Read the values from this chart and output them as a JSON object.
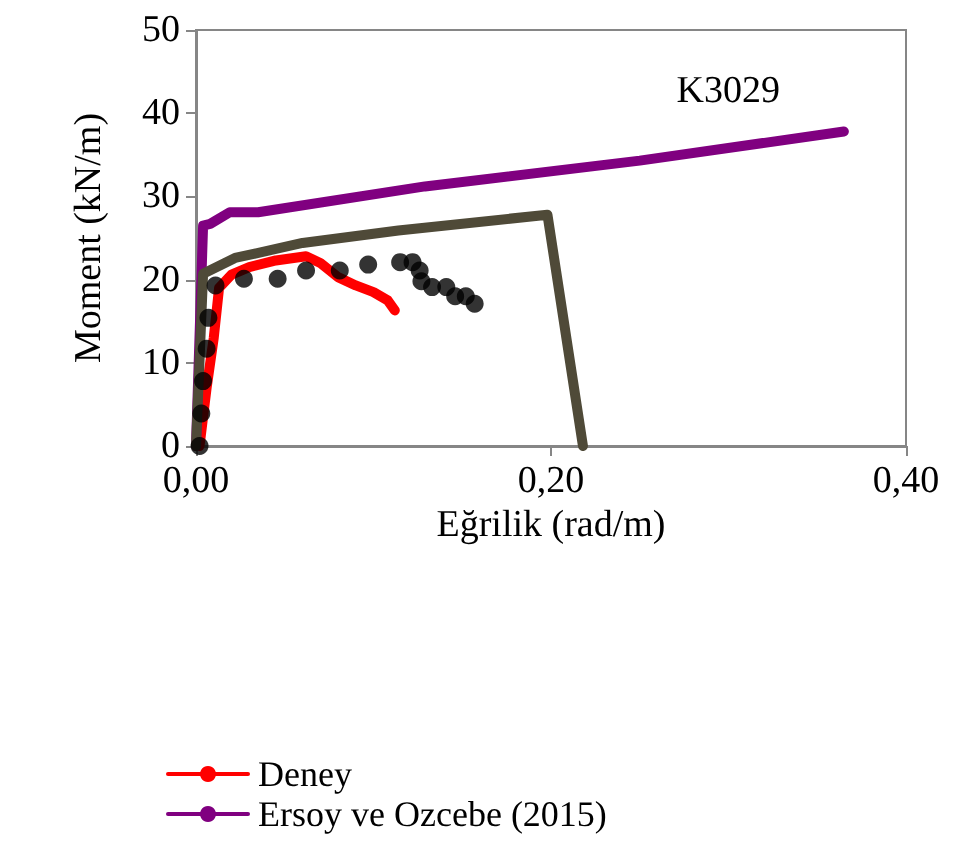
{
  "chart_data": {
    "type": "line",
    "xlabel": "Eğrilik (rad/m)",
    "ylabel": "Moment (kN/m)",
    "xlim": [
      0,
      0.4
    ],
    "xticks": [
      {
        "value": 0,
        "label": "0,00"
      },
      {
        "value": 0.2,
        "label": "0,20"
      },
      {
        "value": 0.4,
        "label": "0,40"
      }
    ],
    "ylim": [
      0,
      50
    ],
    "yticks": [
      0,
      10,
      20,
      30,
      40,
      50
    ],
    "grid": false,
    "legend": "bottom",
    "annotations": [
      "K3029"
    ],
    "series": [
      {
        "name": "Deney",
        "color": "#ff0000",
        "marker": "none",
        "x": [
          0.002,
          0.006,
          0.01,
          0.013,
          0.02,
          0.03,
          0.045,
          0.062,
          0.07,
          0.08,
          0.09,
          0.1,
          0.108,
          0.112
        ],
        "values": [
          0,
          7,
          13,
          19,
          20.6,
          21.5,
          22.3,
          22.8,
          22,
          20.3,
          19.3,
          18.5,
          17.5,
          16.3
        ]
      },
      {
        "name": "Ersoy ve Ozcebe (2015)",
        "color": "#800080",
        "marker": "none",
        "x": [
          0,
          0.004,
          0.008,
          0.019,
          0.035,
          0.129,
          0.25,
          0.365
        ],
        "values": [
          0,
          26.5,
          26.7,
          28.1,
          28.1,
          31.2,
          34.3,
          37.8
        ]
      },
      {
        "color": "#4f4a38",
        "marker": "none",
        "x": [
          0,
          0.004,
          0.022,
          0.06,
          0.114,
          0.198,
          0.218
        ],
        "values": [
          0,
          20.7,
          22.6,
          24.4,
          25.9,
          27.8,
          0
        ]
      },
      {
        "type": "scatter",
        "color": "#000000",
        "marker": "circle",
        "x": [
          0.002,
          0.003,
          0.004,
          0.006,
          0.007,
          0.011,
          0.027,
          0.046,
          0.062,
          0.081,
          0.097,
          0.115,
          0.122,
          0.126,
          0.127,
          0.133,
          0.141,
          0.146,
          0.152,
          0.157
        ],
        "values": [
          0,
          3.9,
          7.8,
          11.7,
          15.4,
          19.3,
          20.1,
          20.1,
          21.1,
          21.1,
          21.8,
          22.1,
          22.1,
          21.1,
          19.8,
          19.1,
          19.1,
          18,
          18,
          17.1
        ]
      }
    ]
  }
}
